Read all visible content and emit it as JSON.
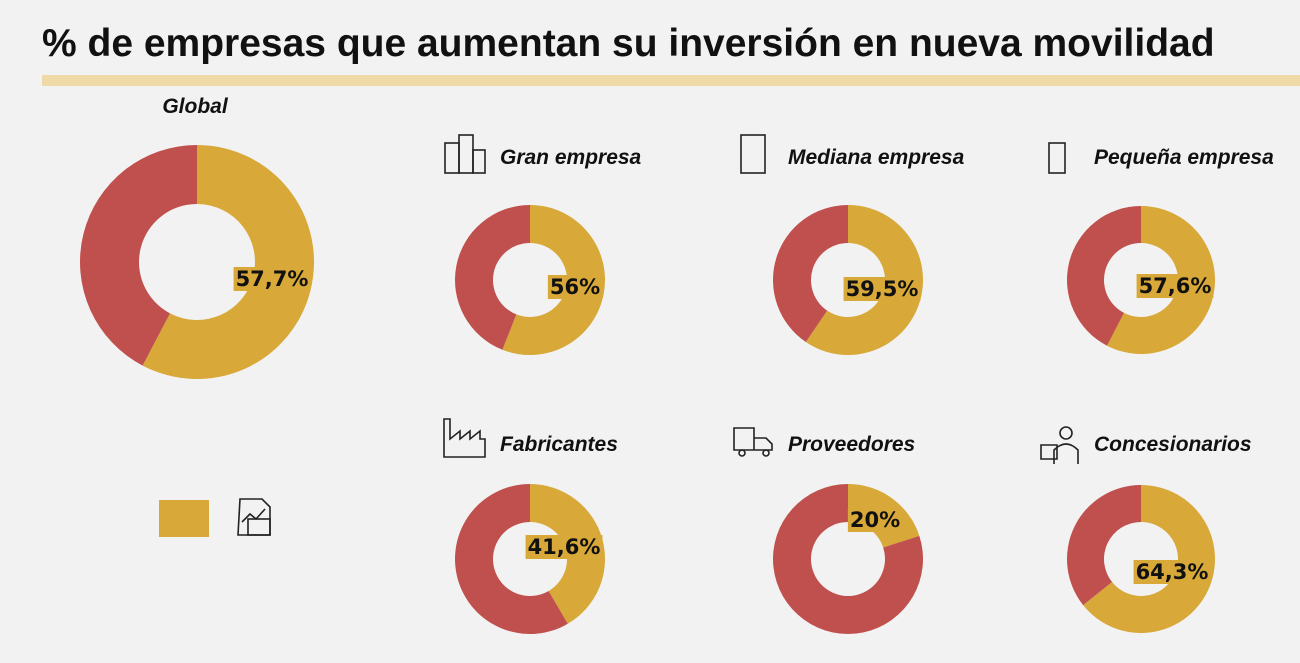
{
  "title": "% de empresas que aumentan su inversión en nueva movilidad",
  "chart_data": [
    {
      "type": "pie",
      "donut": true,
      "title": "Global",
      "values": [
        57.7,
        42.3
      ],
      "value_label": "57,7%",
      "colors": [
        "#d8a838",
        "#c0504d"
      ]
    },
    {
      "type": "pie",
      "donut": true,
      "title": "Gran empresa",
      "values": [
        56,
        44
      ],
      "value_label": "56%",
      "colors": [
        "#d8a838",
        "#c0504d"
      ]
    },
    {
      "type": "pie",
      "donut": true,
      "title": "Mediana empresa",
      "values": [
        59.5,
        40.5
      ],
      "value_label": "59,5%",
      "colors": [
        "#d8a838",
        "#c0504d"
      ]
    },
    {
      "type": "pie",
      "donut": true,
      "title": "Pequeña empresa",
      "values": [
        57.6,
        42.4
      ],
      "value_label": "57,6%",
      "colors": [
        "#d8a838",
        "#c0504d"
      ]
    },
    {
      "type": "pie",
      "donut": true,
      "title": "Fabricantes",
      "values": [
        41.6,
        58.4
      ],
      "value_label": "41,6%",
      "colors": [
        "#d8a838",
        "#c0504d"
      ]
    },
    {
      "type": "pie",
      "donut": true,
      "title": "Proveedores",
      "values": [
        20,
        80
      ],
      "value_label": "20%",
      "colors": [
        "#d8a838",
        "#c0504d"
      ]
    },
    {
      "type": "pie",
      "donut": true,
      "title": "Concesionarios",
      "values": [
        64.3,
        35.7
      ],
      "value_label": "64,3%",
      "colors": [
        "#d8a838",
        "#c0504d"
      ]
    }
  ]
}
